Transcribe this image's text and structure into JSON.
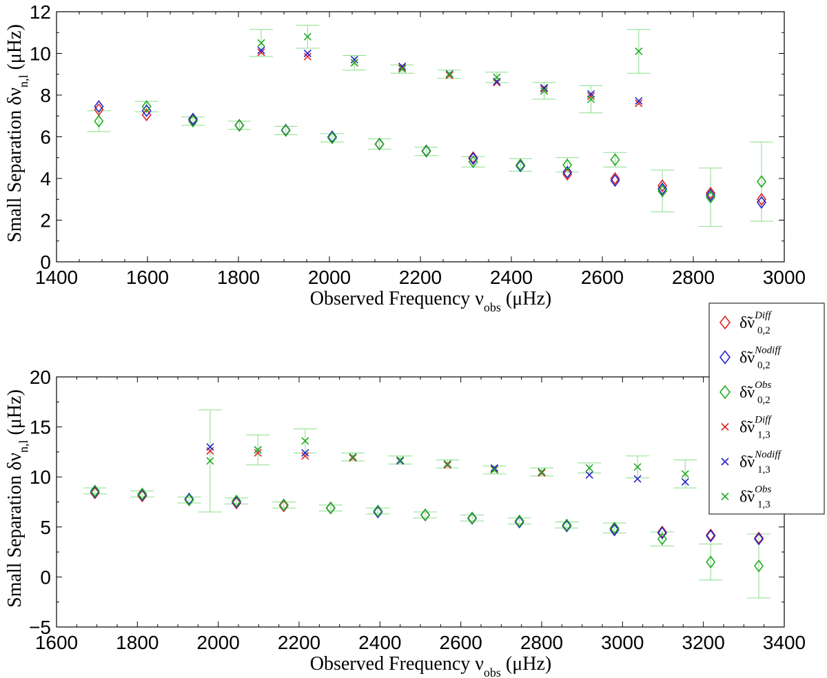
{
  "colors": {
    "diff": "#dd2222",
    "nodiff": "#2222cc",
    "obs": "#22aa22",
    "errorbar": "#88dd88"
  },
  "legend": {
    "entries": [
      {
        "series": "diff_02",
        "marker": "diamond",
        "color": "#dd2222",
        "symbol": "δ̃ν",
        "sub": "0,2",
        "sup": "Diff"
      },
      {
        "series": "nodiff_02",
        "marker": "diamond",
        "color": "#2222cc",
        "symbol": "δ̃ν",
        "sub": "0,2",
        "sup": "Nodiff"
      },
      {
        "series": "obs_02",
        "marker": "diamond",
        "color": "#22aa22",
        "symbol": "δ̃ν",
        "sub": "0,2",
        "sup": "Obs"
      },
      {
        "series": "diff_13",
        "marker": "x",
        "color": "#dd2222",
        "symbol": "δ̃ν",
        "sub": "1,3",
        "sup": "Diff"
      },
      {
        "series": "nodiff_13",
        "marker": "x",
        "color": "#2222cc",
        "symbol": "δ̃ν",
        "sub": "1,3",
        "sup": "Nodiff"
      },
      {
        "series": "obs_13",
        "marker": "x",
        "color": "#22aa22",
        "symbol": "δ̃ν",
        "sub": "1,3",
        "sup": "Obs"
      }
    ]
  },
  "chart_data": [
    {
      "type": "scatter",
      "title": "",
      "xlabel": "Observed Frequency ν_obs (μHz)",
      "ylabel": "Small Separation δν_n,l (μHz)",
      "xlim": [
        1400,
        3000
      ],
      "ylim": [
        0,
        12
      ],
      "xticks": [
        1400,
        1600,
        1800,
        2000,
        2200,
        2400,
        2600,
        2800,
        3000
      ],
      "yticks": [
        0,
        2,
        4,
        6,
        8,
        10,
        12
      ],
      "series": [
        {
          "name": "diff_02",
          "marker": "diamond",
          "color": "#dd2222",
          "x": [
            1493,
            1598,
            1700,
            1802,
            1904,
            2006,
            2110,
            2213,
            2316,
            2420,
            2523,
            2628,
            2732,
            2838,
            2950
          ],
          "y": [
            7.3,
            7.05,
            6.8,
            6.55,
            6.32,
            5.95,
            5.65,
            5.32,
            5.0,
            4.65,
            4.2,
            4.0,
            3.65,
            3.3,
            3.0
          ]
        },
        {
          "name": "nodiff_02",
          "marker": "diamond",
          "color": "#2222cc",
          "x": [
            1493,
            1598,
            1700,
            1802,
            1904,
            2006,
            2110,
            2213,
            2316,
            2420,
            2523,
            2628,
            2732,
            2838,
            2950
          ],
          "y": [
            7.45,
            7.25,
            6.85,
            6.55,
            6.32,
            6.0,
            5.65,
            5.32,
            4.95,
            4.6,
            4.3,
            3.9,
            3.5,
            3.2,
            2.85
          ]
        },
        {
          "name": "obs_02",
          "marker": "diamond",
          "color": "#22aa22",
          "x": [
            1493,
            1598,
            1700,
            1802,
            1904,
            2006,
            2110,
            2213,
            2316,
            2420,
            2523,
            2628,
            2732,
            2838,
            2950
          ],
          "y": [
            6.75,
            7.45,
            6.75,
            6.55,
            6.3,
            5.95,
            5.65,
            5.3,
            4.8,
            4.65,
            4.65,
            4.9,
            3.4,
            3.1,
            3.85
          ],
          "yerr": [
            0.5,
            0.25,
            0.2,
            0.2,
            0.2,
            0.2,
            0.25,
            0.2,
            0.25,
            0.3,
            0.35,
            0.35,
            1.0,
            1.4,
            1.9
          ]
        },
        {
          "name": "diff_13",
          "marker": "x",
          "color": "#dd2222",
          "x": [
            1850,
            1952,
            2055,
            2160,
            2264,
            2368,
            2472,
            2575,
            2680
          ],
          "y": [
            10.05,
            9.85,
            9.55,
            9.3,
            8.95,
            8.6,
            8.3,
            7.95,
            7.6
          ]
        },
        {
          "name": "nodiff_13",
          "marker": "x",
          "color": "#2222cc",
          "x": [
            1850,
            1952,
            2055,
            2160,
            2264,
            2368,
            2472,
            2575,
            2680
          ],
          "y": [
            10.15,
            10.0,
            9.7,
            9.38,
            9.02,
            8.65,
            8.35,
            8.05,
            7.72
          ]
        },
        {
          "name": "obs_13",
          "marker": "x",
          "color": "#22aa22",
          "x": [
            1850,
            1952,
            2055,
            2160,
            2264,
            2368,
            2472,
            2575,
            2680
          ],
          "y": [
            10.5,
            10.8,
            9.55,
            9.25,
            9.0,
            8.85,
            8.2,
            7.8,
            10.1
          ],
          "yerr": [
            0.65,
            0.55,
            0.35,
            0.2,
            0.2,
            0.25,
            0.4,
            0.65,
            1.05
          ]
        }
      ]
    },
    {
      "type": "scatter",
      "title": "",
      "xlabel": "Observed Frequency ν_obs (μHz)",
      "ylabel": "Small Separation δν_n,l (μHz)",
      "xlim": [
        1600,
        3400
      ],
      "ylim": [
        -5,
        20
      ],
      "xticks": [
        1600,
        1800,
        2000,
        2200,
        2400,
        2600,
        2800,
        3000,
        3200,
        3400
      ],
      "yticks": [
        -5,
        0,
        5,
        10,
        15,
        20
      ],
      "series": [
        {
          "name": "diff_02",
          "marker": "diamond",
          "color": "#dd2222",
          "x": [
            1695,
            1812,
            1928,
            2045,
            2162,
            2278,
            2395,
            2512,
            2628,
            2745,
            2862,
            2980,
            3098,
            3218,
            3337
          ],
          "y": [
            8.4,
            8.1,
            7.7,
            7.4,
            7.1,
            6.9,
            6.5,
            6.2,
            5.9,
            5.5,
            5.1,
            4.8,
            4.5,
            4.2,
            3.9
          ]
        },
        {
          "name": "nodiff_02",
          "marker": "diamond",
          "color": "#2222cc",
          "x": [
            1695,
            1812,
            1928,
            2045,
            2162,
            2278,
            2395,
            2512,
            2628,
            2745,
            2862,
            2980,
            3098,
            3218,
            3337
          ],
          "y": [
            8.5,
            8.2,
            7.8,
            7.5,
            7.2,
            6.9,
            6.5,
            6.2,
            5.85,
            5.5,
            5.1,
            4.7,
            4.4,
            4.1,
            3.8
          ]
        },
        {
          "name": "obs_02",
          "marker": "diamond",
          "color": "#22aa22",
          "x": [
            1695,
            1812,
            1928,
            2045,
            2162,
            2278,
            2395,
            2512,
            2628,
            2745,
            2862,
            2980,
            3098,
            3218,
            3337
          ],
          "y": [
            8.6,
            8.3,
            7.7,
            7.6,
            7.2,
            6.9,
            6.6,
            6.2,
            5.9,
            5.6,
            5.2,
            4.9,
            3.8,
            1.5,
            1.1
          ],
          "yerr": [
            0.3,
            0.3,
            0.3,
            0.3,
            0.3,
            0.3,
            0.3,
            0.3,
            0.3,
            0.3,
            0.3,
            0.5,
            0.7,
            1.8,
            3.2
          ]
        },
        {
          "name": "diff_13",
          "marker": "x",
          "color": "#dd2222",
          "x": [
            1980,
            2098,
            2215,
            2333,
            2450,
            2567,
            2683,
            2800
          ],
          "y": [
            12.6,
            12.4,
            12.1,
            11.9,
            11.6,
            11.2,
            10.8,
            10.4
          ]
        },
        {
          "name": "nodiff_13",
          "marker": "x",
          "color": "#2222cc",
          "x": [
            1980,
            2098,
            2215,
            2333,
            2450,
            2567,
            2683,
            2800,
            2918,
            3037,
            3155
          ],
          "y": [
            13.0,
            12.7,
            12.4,
            12.0,
            11.6,
            11.3,
            10.9,
            10.5,
            10.2,
            9.8,
            9.5
          ]
        },
        {
          "name": "obs_13",
          "marker": "x",
          "color": "#22aa22",
          "x": [
            1980,
            2098,
            2215,
            2333,
            2450,
            2567,
            2683,
            2800,
            2918,
            3037,
            3155
          ],
          "y": [
            11.6,
            12.7,
            13.6,
            12.0,
            11.7,
            11.3,
            10.7,
            10.5,
            10.9,
            11.0,
            10.3
          ],
          "yerr": [
            5.1,
            1.5,
            1.2,
            0.4,
            0.4,
            0.4,
            0.4,
            0.4,
            0.5,
            1.1,
            1.4
          ]
        }
      ]
    }
  ]
}
